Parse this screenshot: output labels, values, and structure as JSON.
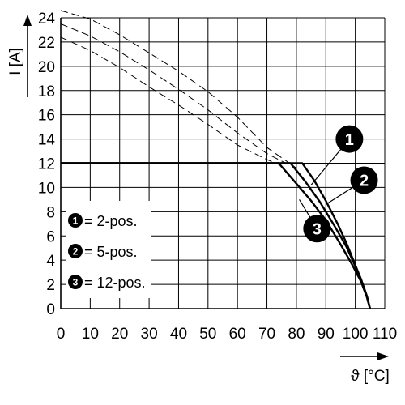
{
  "chart_data": {
    "type": "line",
    "xlabel": "ϑ [°C]",
    "ylabel": "I [A]",
    "xlim": [
      0,
      110
    ],
    "ylim": [
      0,
      24
    ],
    "x_ticks": [
      "0",
      "10",
      "20",
      "30",
      "40",
      "50",
      "60",
      "70",
      "80",
      "90",
      "100",
      "110"
    ],
    "y_ticks": [
      "0",
      "2",
      "4",
      "6",
      "8",
      "10",
      "12",
      "14",
      "16",
      "18",
      "20",
      "22",
      "24"
    ],
    "grid": true,
    "legend_placement": "bottom-left",
    "legend": [
      {
        "marker": "1",
        "label": "= 2-pos."
      },
      {
        "marker": "2",
        "label": "= 5-pos."
      },
      {
        "marker": "3",
        "label": "= 12-pos."
      }
    ],
    "series": [
      {
        "marker": "1",
        "style": "solid",
        "x": [
          0,
          82,
          86,
          90,
          94,
          97,
          100,
          102,
          104,
          105
        ],
        "y": [
          12,
          12,
          10.6,
          8.9,
          7.0,
          5.4,
          3.6,
          2.4,
          1.0,
          0
        ]
      },
      {
        "marker": "2",
        "style": "solid",
        "x": [
          0,
          78,
          83,
          88,
          93,
          97,
          100,
          102,
          104,
          105
        ],
        "y": [
          12,
          12,
          10.5,
          8.8,
          6.8,
          5.1,
          3.5,
          2.3,
          0.9,
          0
        ]
      },
      {
        "marker": "3",
        "style": "solid",
        "x": [
          0,
          74,
          79,
          85,
          90,
          95,
          99,
          102,
          104,
          105
        ],
        "y": [
          12,
          12,
          10.6,
          8.9,
          7.3,
          5.3,
          3.6,
          2.2,
          0.9,
          0
        ]
      },
      {
        "marker": "1",
        "style": "dashed",
        "x": [
          0,
          10,
          20,
          30,
          40,
          50,
          60,
          70,
          80
        ],
        "y": [
          24.6,
          23.9,
          22.6,
          21.1,
          19.6,
          17.9,
          15.8,
          13.3,
          11.6
        ]
      },
      {
        "marker": "2",
        "style": "dashed",
        "x": [
          0,
          10,
          20,
          30,
          40,
          50,
          60,
          70,
          78
        ],
        "y": [
          23.5,
          22.5,
          21.2,
          19.7,
          18.1,
          16.4,
          14.5,
          12.8,
          11.8
        ]
      },
      {
        "marker": "3",
        "style": "dashed",
        "x": [
          0,
          10,
          20,
          30,
          40,
          50,
          60,
          70,
          74
        ],
        "y": [
          22.4,
          21.3,
          19.9,
          18.3,
          16.8,
          15.2,
          13.5,
          12.3,
          11.9
        ]
      }
    ],
    "callouts": [
      {
        "marker": "1",
        "from": [
          98,
          14
        ],
        "to": [
          85,
          10.2
        ]
      },
      {
        "marker": "2",
        "from": [
          103,
          10.6
        ],
        "to": [
          90,
          8.6
        ]
      },
      {
        "marker": "3",
        "from": [
          87,
          6.6
        ],
        "to": [
          81,
          9.0
        ]
      }
    ]
  }
}
